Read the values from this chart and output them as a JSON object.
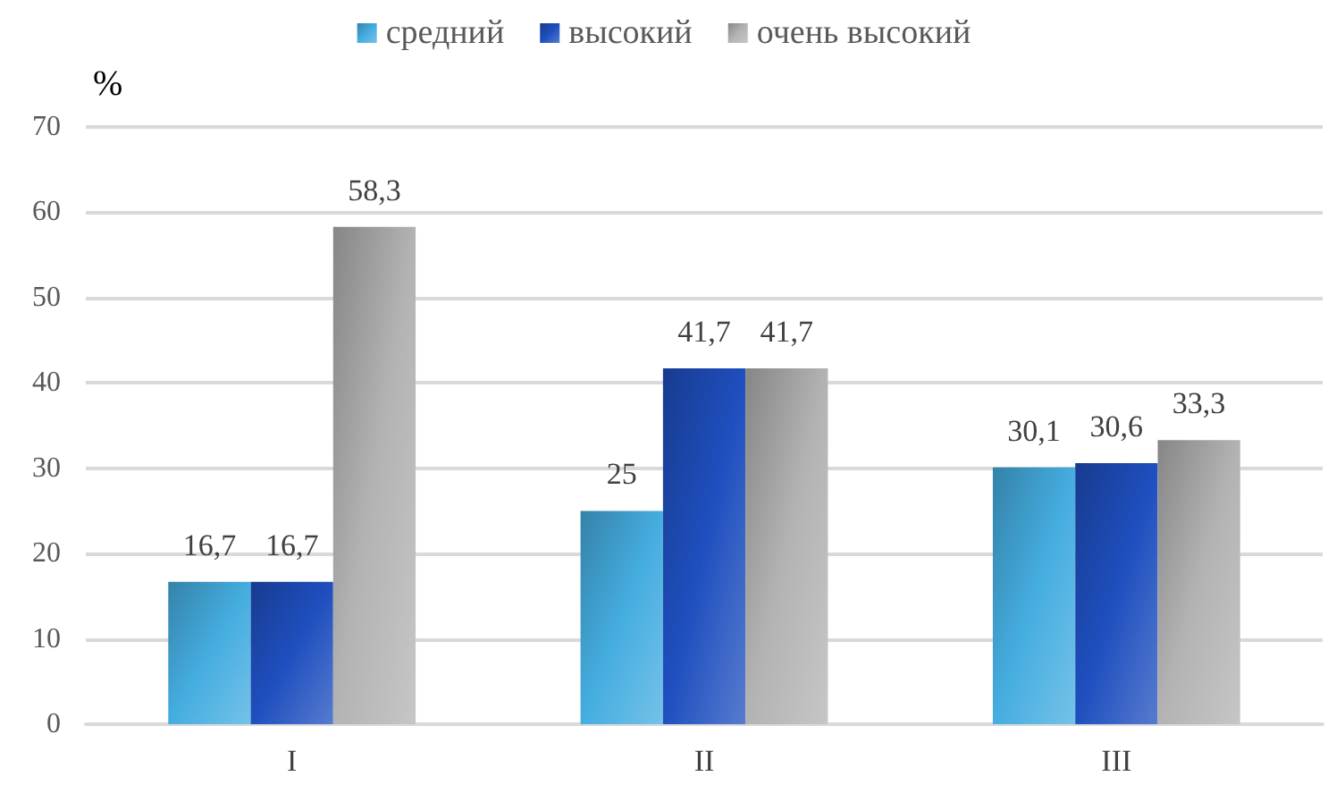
{
  "chart_data": {
    "type": "bar",
    "ylabel": "%",
    "categories": [
      "I",
      "II",
      "III"
    ],
    "series": [
      {
        "name": "средний",
        "color": "#45ade0",
        "values": [
          16.7,
          25,
          30.1
        ],
        "value_labels": [
          "16,7",
          "25",
          "30,1"
        ]
      },
      {
        "name": "высокий",
        "color": "#1f4fbf",
        "values": [
          16.7,
          41.7,
          30.6
        ],
        "value_labels": [
          "16,7",
          "41,7",
          "30,6"
        ]
      },
      {
        "name": "очень высокий",
        "color": "#b3b3b3",
        "values": [
          58.3,
          41.7,
          33.3
        ],
        "value_labels": [
          "58,3",
          "41,7",
          "33,3"
        ]
      }
    ],
    "ylim": [
      0,
      70
    ],
    "yticks": [
      0,
      10,
      20,
      30,
      40,
      50,
      60,
      70
    ],
    "grid": "y",
    "legend": "top"
  }
}
